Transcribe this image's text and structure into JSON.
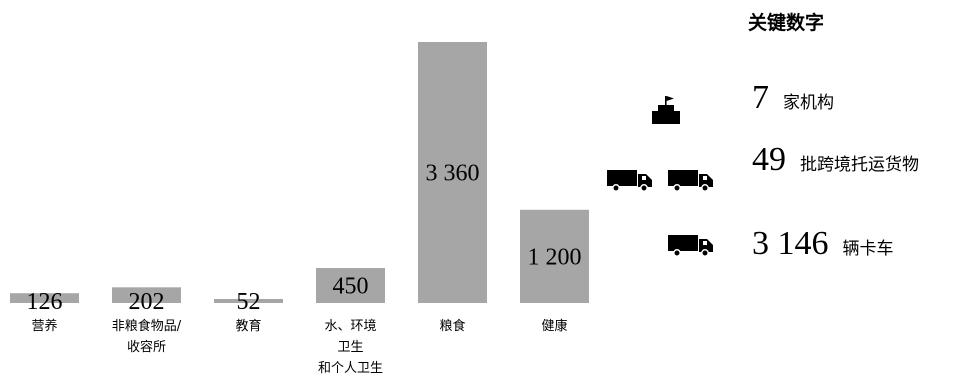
{
  "chart_data": {
    "type": "bar",
    "categories": [
      [
        "营养"
      ],
      [
        "非粮食物品/",
        "收容所"
      ],
      [
        "教育"
      ],
      [
        "水、环境",
        "卫生",
        "和个人卫生"
      ],
      [
        "粮食"
      ],
      [
        "健康"
      ]
    ],
    "values": [
      126,
      202,
      52,
      450,
      3360,
      1200
    ],
    "value_labels": [
      "126",
      "202",
      "52",
      "450",
      "3 360",
      "1 200"
    ],
    "bar_color": "#a6a6a6",
    "ylim": [
      0,
      3360
    ]
  },
  "key_figures": {
    "title": "关键数字",
    "items": [
      {
        "number": "7",
        "label": "家机构",
        "icon": "building-flag-icon"
      },
      {
        "number": "49",
        "label": "批跨境托运货物",
        "icon": "truck-icon"
      },
      {
        "number": "3 146",
        "label": "辆卡车",
        "icon": "truck-icon"
      }
    ]
  }
}
